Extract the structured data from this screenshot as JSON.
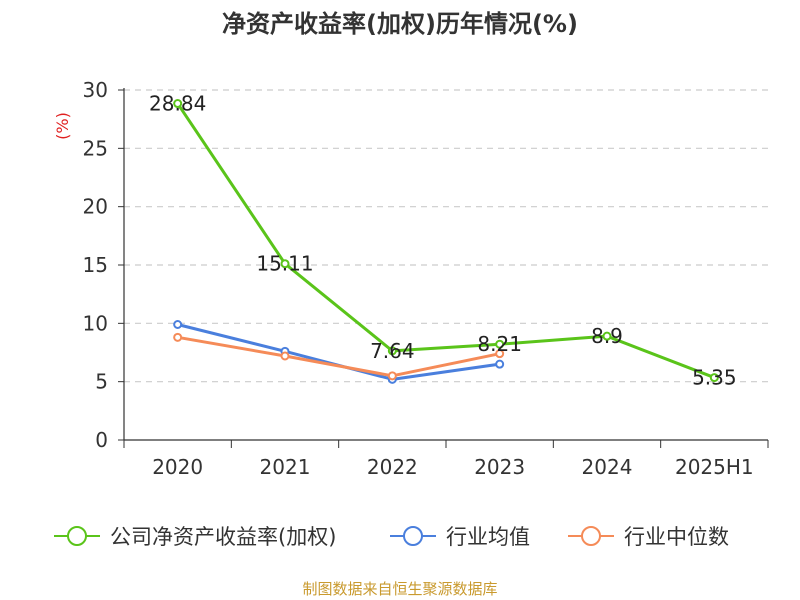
{
  "title": "净资产收益率(加权)历年情况(%)",
  "source_text": "制图数据来自恒生聚源数据库",
  "chart_data": {
    "type": "line",
    "title": "净资产收益率(加权)历年情况(%)",
    "ylabel": "(%)",
    "xlabel": "",
    "categories": [
      "2020",
      "2021",
      "2022",
      "2023",
      "2024",
      "2025H1"
    ],
    "ylim": [
      0,
      30
    ],
    "yticks": [
      0,
      5,
      10,
      15,
      20,
      25,
      30
    ],
    "grid": true,
    "legend_position": "bottom",
    "series": [
      {
        "name": "公司净资产收益率(加权)",
        "color": "#5ac41a",
        "values": [
          28.84,
          15.11,
          7.64,
          8.21,
          8.9,
          5.35
        ],
        "labels": [
          "28.84",
          "15.11",
          "7.64",
          "8.21",
          "8.9",
          "5.35"
        ]
      },
      {
        "name": "行业均值",
        "color": "#4a7fdd",
        "values": [
          9.9,
          7.6,
          5.2,
          6.5,
          null,
          null
        ]
      },
      {
        "name": "行业中位数",
        "color": "#f58b58",
        "values": [
          8.8,
          7.2,
          5.5,
          7.4,
          null,
          null
        ]
      }
    ]
  }
}
